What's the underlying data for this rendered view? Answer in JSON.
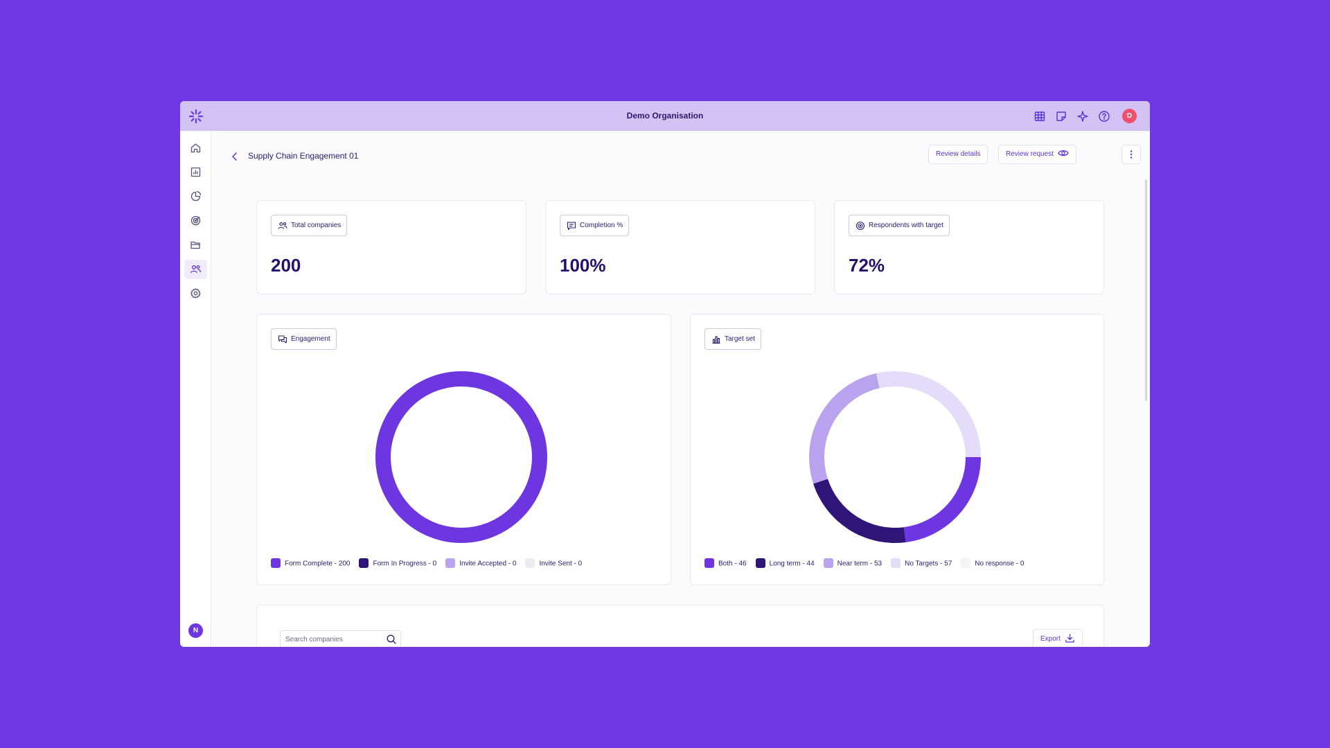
{
  "titlebar": {
    "org_name": "Demo Organisation",
    "icons": [
      "grid-icon",
      "notes-icon",
      "sparkle-icon",
      "help-icon"
    ],
    "user_initial": "D"
  },
  "sidebar": {
    "items": [
      "home-icon",
      "reports-icon",
      "analytics-icon",
      "targets-icon",
      "folder-icon",
      "suppliers-icon",
      "settings-icon"
    ],
    "active_item": "suppliers-icon",
    "user_initial": "N"
  },
  "header": {
    "title": "Supply Chain Engagement 01",
    "review_details_label": "Review details",
    "review_request_label": "Review request"
  },
  "stats": [
    {
      "label": "Total companies",
      "value": "200",
      "icon": "users-icon"
    },
    {
      "label": "Completion %",
      "value": "100%",
      "icon": "message-icon"
    },
    {
      "label": "Respondents with target",
      "value": "72%",
      "icon": "target-icon"
    }
  ],
  "colors": {
    "accent": "#6d36e0",
    "dark": "#2e1577",
    "light": "#b9a3ee",
    "pale": "#e5dcf9",
    "faint": "#f3f1f7"
  },
  "chart_data": [
    {
      "type": "pie",
      "title": "Engagement",
      "categories": [
        "Form Complete",
        "Form In Progress",
        "Invite Accepted",
        "Invite Sent"
      ],
      "values": [
        200,
        0,
        0,
        0
      ],
      "legend": [
        "Form Complete - 200",
        "Form In Progress - 0",
        "Invite Accepted - 0",
        "Invite Sent - 0"
      ],
      "colors": [
        "#6d36e0",
        "#2e1577",
        "#b9a3ee",
        "#eeebf3"
      ],
      "legend_position": "bottom"
    },
    {
      "type": "pie",
      "title": "Target set",
      "categories": [
        "Both",
        "Long term",
        "Near term",
        "No Targets",
        "No response"
      ],
      "values": [
        46,
        44,
        53,
        57,
        0
      ],
      "legend": [
        "Both - 46",
        "Long term - 44",
        "Near term - 53",
        "No Targets - 57",
        "No response - 0"
      ],
      "colors": [
        "#6d36e0",
        "#2e1577",
        "#b9a3ee",
        "#e5dcf9",
        "#f5f3f8"
      ],
      "legend_position": "bottom"
    }
  ],
  "table": {
    "search_placeholder": "Search companies",
    "export_label": "Export"
  }
}
